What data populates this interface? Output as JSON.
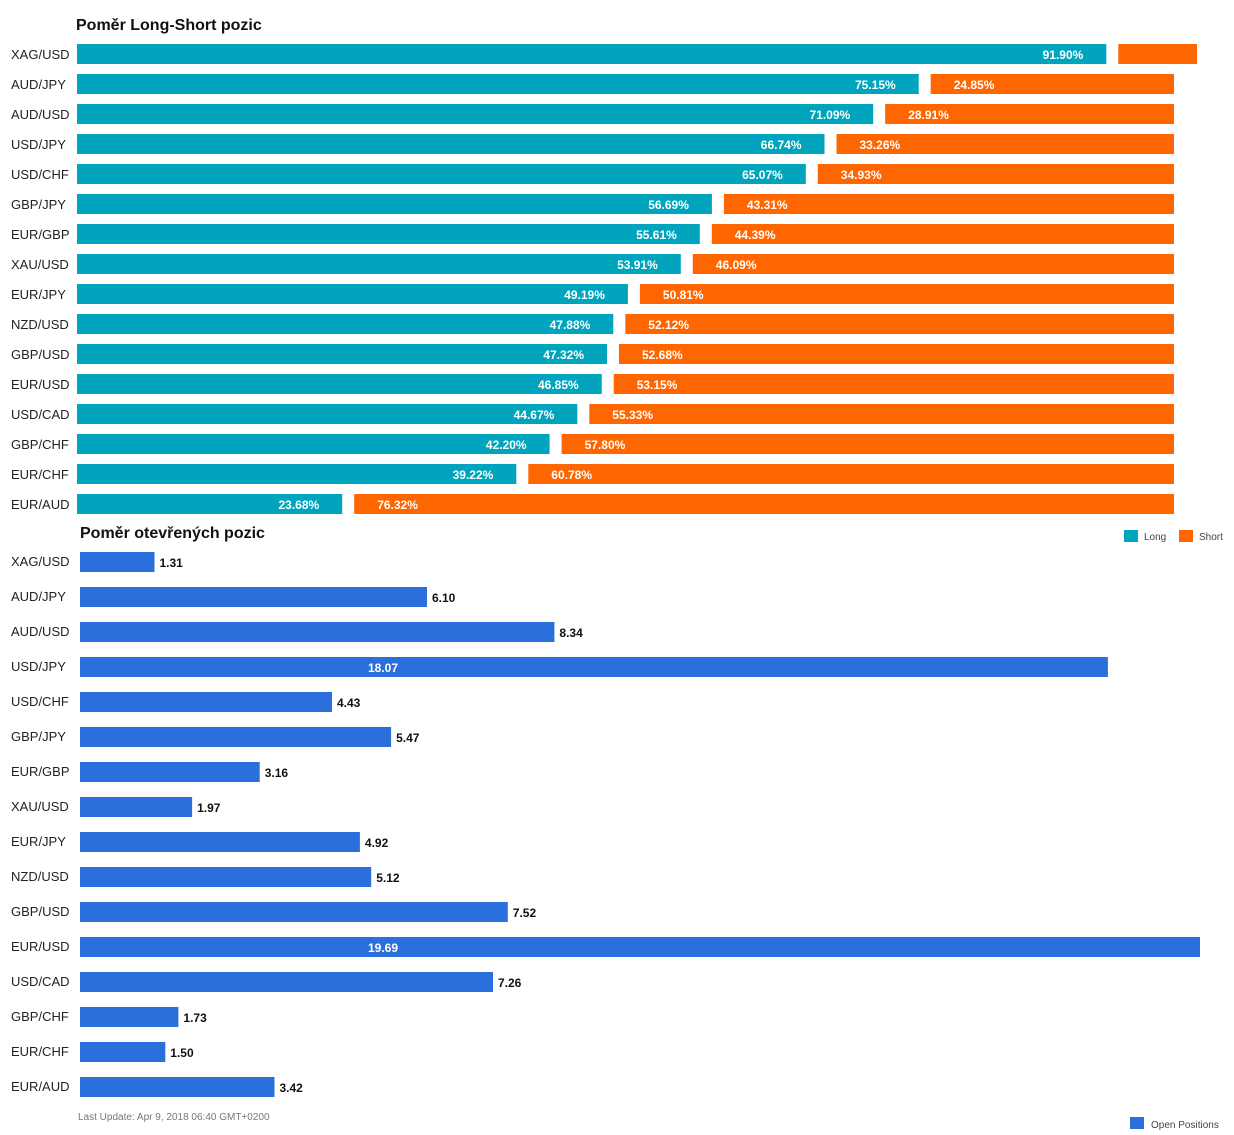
{
  "colors": {
    "long": "#00a5bd",
    "short": "#ff6600",
    "open": "#2a6fdb"
  },
  "chart_data": [
    {
      "type": "bar",
      "orientation": "horizontal",
      "stacked": true,
      "title": "Poměr Long-Short pozic",
      "categories": [
        "XAG/USD",
        "AUD/JPY",
        "AUD/USD",
        "USD/JPY",
        "USD/CHF",
        "GBP/JPY",
        "EUR/GBP",
        "XAU/USD",
        "EUR/JPY",
        "NZD/USD",
        "GBP/USD",
        "EUR/USD",
        "USD/CAD",
        "GBP/CHF",
        "EUR/CHF",
        "EUR/AUD"
      ],
      "series": [
        {
          "name": "Long",
          "color": "#00a5bd",
          "values": [
            91.9,
            75.15,
            71.09,
            66.74,
            65.07,
            56.69,
            55.61,
            53.91,
            49.19,
            47.88,
            47.32,
            46.85,
            44.67,
            42.2,
            39.22,
            23.68
          ]
        },
        {
          "name": "Short",
          "color": "#ff6600",
          "values": [
            8.1,
            24.85,
            28.91,
            33.26,
            34.93,
            43.31,
            44.39,
            46.09,
            50.81,
            52.12,
            52.68,
            53.15,
            55.33,
            57.8,
            60.78,
            76.32
          ]
        }
      ],
      "labels": {
        "long": [
          "91.90%",
          "75.15%",
          "71.09%",
          "66.74%",
          "65.07%",
          "56.69%",
          "55.61%",
          "53.91%",
          "49.19%",
          "47.88%",
          "47.32%",
          "46.85%",
          "44.67%",
          "42.20%",
          "39.22%",
          "23.68%"
        ],
        "short": [
          "",
          "24.85%",
          "28.91%",
          "33.26%",
          "34.93%",
          "43.31%",
          "44.39%",
          "46.09%",
          "50.81%",
          "52.12%",
          "52.68%",
          "53.15%",
          "55.33%",
          "57.80%",
          "60.78%",
          "76.32%"
        ]
      },
      "legend": [
        "Long",
        "Short"
      ],
      "legend_position": "bottom-right"
    },
    {
      "type": "bar",
      "orientation": "horizontal",
      "title": "Poměr otevřených pozic",
      "categories": [
        "XAG/USD",
        "AUD/JPY",
        "AUD/USD",
        "USD/JPY",
        "USD/CHF",
        "GBP/JPY",
        "EUR/GBP",
        "XAU/USD",
        "EUR/JPY",
        "NZD/USD",
        "GBP/USD",
        "EUR/USD",
        "USD/CAD",
        "GBP/CHF",
        "EUR/CHF",
        "EUR/AUD"
      ],
      "series": [
        {
          "name": "Open Positions",
          "color": "#2a6fdb",
          "values": [
            1.31,
            6.1,
            8.34,
            18.07,
            4.43,
            5.47,
            3.16,
            1.97,
            4.92,
            5.12,
            7.52,
            19.69,
            7.26,
            1.73,
            1.5,
            3.42
          ]
        }
      ],
      "labels": [
        "1.31",
        "6.10",
        "8.34",
        "18.07",
        "4.43",
        "5.47",
        "3.16",
        "1.97",
        "4.92",
        "5.12",
        "7.52",
        "19.69",
        "7.26",
        "1.73",
        "1.50",
        "3.42"
      ],
      "legend": [
        "Open Positions"
      ],
      "legend_position": "bottom-right"
    }
  ],
  "footer": {
    "last_update": "Last Update: Apr 9, 2018 06:40 GMT+0200"
  }
}
